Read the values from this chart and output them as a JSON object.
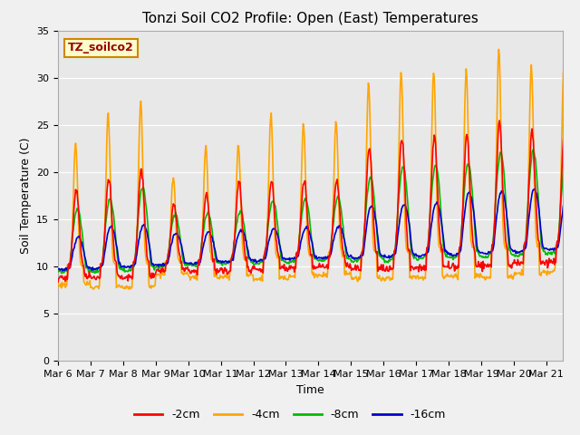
{
  "title": "Tonzi Soil CO2 Profile: Open (East) Temperatures",
  "xlabel": "Time",
  "ylabel": "Soil Temperature (C)",
  "ylim": [
    0,
    35
  ],
  "legend_label": "TZ_soilco2",
  "series_labels": [
    "-2cm",
    "-4cm",
    "-8cm",
    "-16cm"
  ],
  "series_colors": [
    "#ff0000",
    "#ffa500",
    "#00bb00",
    "#0000cc"
  ],
  "xtick_labels": [
    "Mar 6",
    "Mar 7",
    "Mar 8",
    "Mar 9",
    "Mar 10",
    "Mar 11",
    "Mar 12",
    "Mar 13",
    "Mar 14",
    "Mar 15",
    "Mar 16",
    "Mar 17",
    "Mar 18",
    "Mar 19",
    "Mar 20",
    "Mar 21"
  ],
  "background_color": "#e8e8e8",
  "fig_background": "#f0f0f0",
  "title_fontsize": 11,
  "axis_label_fontsize": 9,
  "tick_fontsize": 8,
  "legend_fontsize": 9,
  "line_width": 1.2
}
